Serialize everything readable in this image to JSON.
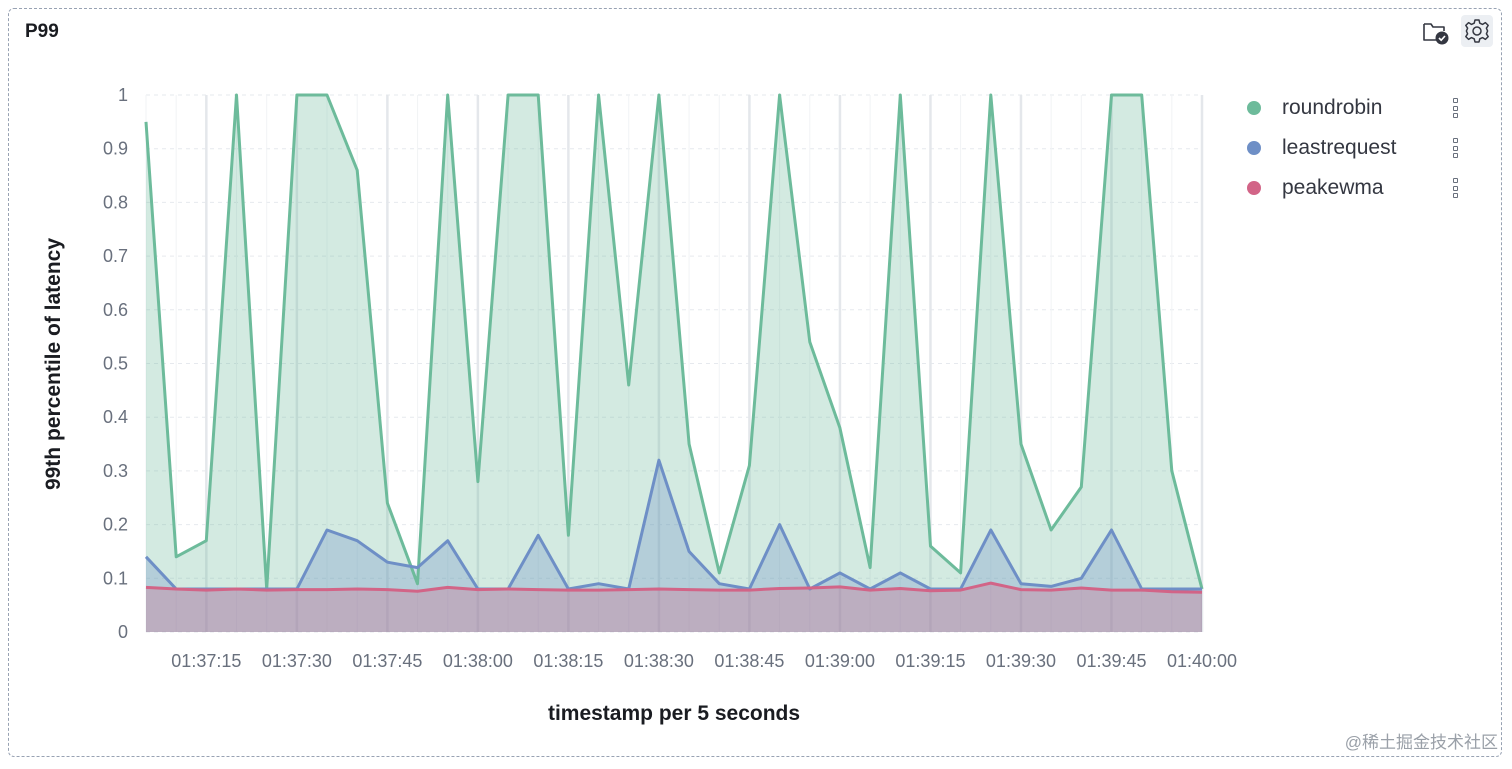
{
  "panel": {
    "title": "P99",
    "folder_icon": "folder-check-icon",
    "settings_icon": "gear-icon"
  },
  "legend": [
    {
      "name": "roundrobin",
      "color": "#6dbb9b"
    },
    {
      "name": "leastrequest",
      "color": "#6e8fc6"
    },
    {
      "name": "peakewma",
      "color": "#d26487"
    }
  ],
  "watermark": "@稀土掘金技术社区",
  "chart_data": {
    "type": "area",
    "xlabel": "timestamp per 5 seconds",
    "ylabel": "99th percentile of latency",
    "ylim": [
      0,
      1
    ],
    "yticks": [
      "0",
      "0.1",
      "0.2",
      "0.3",
      "0.4",
      "0.5",
      "0.6",
      "0.7",
      "0.8",
      "0.9",
      "1"
    ],
    "xticks": [
      "01:37:15",
      "01:37:30",
      "01:37:45",
      "01:38:00",
      "01:38:15",
      "01:38:30",
      "01:38:45",
      "01:39:00",
      "01:39:15",
      "01:39:30",
      "01:39:45",
      "01:40:00"
    ],
    "x": [
      "01:37:05",
      "01:37:10",
      "01:37:15",
      "01:37:20",
      "01:37:25",
      "01:37:30",
      "01:37:35",
      "01:37:40",
      "01:37:45",
      "01:37:50",
      "01:37:55",
      "01:38:00",
      "01:38:05",
      "01:38:10",
      "01:38:15",
      "01:38:20",
      "01:38:25",
      "01:38:30",
      "01:38:35",
      "01:38:40",
      "01:38:45",
      "01:38:50",
      "01:38:55",
      "01:39:00",
      "01:39:05",
      "01:39:10",
      "01:39:15",
      "01:39:20",
      "01:39:25",
      "01:39:30",
      "01:39:35",
      "01:39:40",
      "01:39:45",
      "01:39:50",
      "01:39:55",
      "01:40:00"
    ],
    "series": [
      {
        "name": "roundrobin",
        "color": "#6dbb9b",
        "values": [
          0.95,
          0.14,
          0.17,
          1.0,
          0.08,
          1.0,
          1.0,
          0.86,
          0.24,
          0.09,
          1.0,
          0.28,
          1.0,
          1.0,
          0.18,
          1.0,
          0.46,
          1.0,
          0.35,
          0.11,
          0.31,
          1.0,
          0.54,
          0.38,
          0.12,
          1.0,
          0.16,
          0.11,
          1.0,
          0.35,
          0.19,
          0.27,
          1.0,
          1.0,
          0.3,
          0.08
        ]
      },
      {
        "name": "leastrequest",
        "color": "#6e8fc6",
        "values": [
          0.14,
          0.08,
          0.08,
          0.08,
          0.08,
          0.08,
          0.19,
          0.17,
          0.13,
          0.12,
          0.17,
          0.08,
          0.08,
          0.18,
          0.08,
          0.09,
          0.08,
          0.32,
          0.15,
          0.09,
          0.08,
          0.2,
          0.08,
          0.11,
          0.08,
          0.11,
          0.08,
          0.08,
          0.19,
          0.09,
          0.085,
          0.1,
          0.19,
          0.08,
          0.08,
          0.08
        ]
      },
      {
        "name": "peakewma",
        "color": "#d26487",
        "values": [
          0.083,
          0.08,
          0.078,
          0.08,
          0.078,
          0.079,
          0.079,
          0.08,
          0.079,
          0.076,
          0.083,
          0.079,
          0.08,
          0.079,
          0.078,
          0.078,
          0.079,
          0.08,
          0.079,
          0.078,
          0.078,
          0.081,
          0.082,
          0.084,
          0.078,
          0.081,
          0.077,
          0.078,
          0.091,
          0.079,
          0.078,
          0.082,
          0.078,
          0.078,
          0.075,
          0.074
        ]
      }
    ],
    "grid": true,
    "legend_position": "right"
  }
}
